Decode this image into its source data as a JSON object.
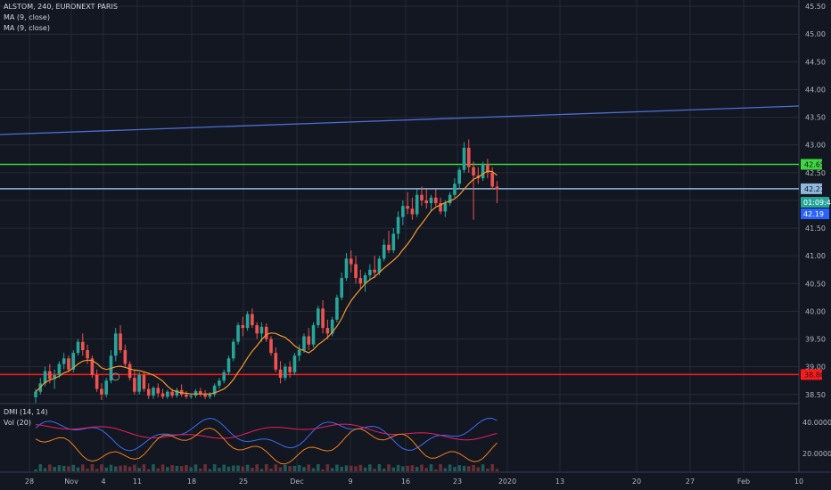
{
  "header": {
    "symbol_line": "ALSTOM, 240, EURONEXT PARIS",
    "indicator_1": "MA (9, close)",
    "indicator_2": "MA (9, close)"
  },
  "lower_pane": {
    "indicator_1": "DMI (14, 14)",
    "indicator_2": "Vol (20)"
  },
  "chart_data": {
    "type": "candlestick",
    "price_axis": {
      "range": [
        38.4,
        45.55
      ],
      "ticks": [
        "45.50",
        "45.00",
        "44.50",
        "44.00",
        "43.50",
        "43.00",
        "42.50",
        "42.00",
        "41.50",
        "41.00",
        "40.50",
        "40.00",
        "39.50",
        "39.00",
        "38.50"
      ]
    },
    "dmi_axis": {
      "ticks": [
        "40.0000",
        "20.0000"
      ]
    },
    "x_axis": {
      "labels": [
        "28",
        "Nov",
        "4",
        "11",
        "18",
        "25",
        "Dec",
        "9",
        "16",
        "23",
        "2020",
        "13",
        "20",
        "27",
        "Feb",
        "10"
      ]
    },
    "candles": [
      [
        38.45,
        38.6,
        38.35,
        38.55
      ],
      [
        38.55,
        38.8,
        38.5,
        38.7
      ],
      [
        38.7,
        39.0,
        38.65,
        38.92
      ],
      [
        38.92,
        39.05,
        38.7,
        38.78
      ],
      [
        38.78,
        38.95,
        38.6,
        38.85
      ],
      [
        38.85,
        39.1,
        38.8,
        39.05
      ],
      [
        39.05,
        39.25,
        38.95,
        39.15
      ],
      [
        39.15,
        39.2,
        38.9,
        38.95
      ],
      [
        38.95,
        39.3,
        38.9,
        39.25
      ],
      [
        39.25,
        39.5,
        39.2,
        39.45
      ],
      [
        39.45,
        39.6,
        39.2,
        39.3
      ],
      [
        39.3,
        39.4,
        39.05,
        39.15
      ],
      [
        39.15,
        39.2,
        38.8,
        38.85
      ],
      [
        38.85,
        38.95,
        38.55,
        38.6
      ],
      [
        38.6,
        38.7,
        38.4,
        38.5
      ],
      [
        38.5,
        38.8,
        38.45,
        38.75
      ],
      [
        38.75,
        39.3,
        38.7,
        39.2
      ],
      [
        39.2,
        39.7,
        39.1,
        39.6
      ],
      [
        39.6,
        39.75,
        39.25,
        39.3
      ],
      [
        39.3,
        39.4,
        39.0,
        39.05
      ],
      [
        39.05,
        39.1,
        38.75,
        38.8
      ],
      [
        38.8,
        38.95,
        38.5,
        38.55
      ],
      [
        38.55,
        38.9,
        38.5,
        38.85
      ],
      [
        38.85,
        38.9,
        38.55,
        38.6
      ],
      [
        38.6,
        38.7,
        38.42,
        38.48
      ],
      [
        38.48,
        38.65,
        38.42,
        38.62
      ],
      [
        38.62,
        38.7,
        38.45,
        38.52
      ],
      [
        38.52,
        38.6,
        38.42,
        38.46
      ],
      [
        38.46,
        38.58,
        38.42,
        38.55
      ],
      [
        38.55,
        38.6,
        38.44,
        38.48
      ],
      [
        38.48,
        38.62,
        38.44,
        38.58
      ],
      [
        38.58,
        38.68,
        38.46,
        38.5
      ],
      [
        38.5,
        38.56,
        38.42,
        38.46
      ],
      [
        38.46,
        38.52,
        38.42,
        38.48
      ],
      [
        38.48,
        38.6,
        38.44,
        38.56
      ],
      [
        38.56,
        38.62,
        38.46,
        38.5
      ],
      [
        38.5,
        38.58,
        38.42,
        38.46
      ],
      [
        38.46,
        38.54,
        38.42,
        38.5
      ],
      [
        38.5,
        38.7,
        38.46,
        38.66
      ],
      [
        38.66,
        38.8,
        38.6,
        38.75
      ],
      [
        38.75,
        38.95,
        38.7,
        38.9
      ],
      [
        38.9,
        39.2,
        38.85,
        39.15
      ],
      [
        39.15,
        39.5,
        39.1,
        39.45
      ],
      [
        39.45,
        39.8,
        39.4,
        39.75
      ],
      [
        39.75,
        39.9,
        39.55,
        39.7
      ],
      [
        39.7,
        40.0,
        39.65,
        39.95
      ],
      [
        39.95,
        40.05,
        39.7,
        39.75
      ],
      [
        39.75,
        39.8,
        39.5,
        39.6
      ],
      [
        39.6,
        39.8,
        39.45,
        39.72
      ],
      [
        39.72,
        39.78,
        39.45,
        39.5
      ],
      [
        39.5,
        39.55,
        39.2,
        39.25
      ],
      [
        39.25,
        39.35,
        38.9,
        38.95
      ],
      [
        38.95,
        39.1,
        38.7,
        38.8
      ],
      [
        38.8,
        39.05,
        38.75,
        39.0
      ],
      [
        39.0,
        39.1,
        38.8,
        38.9
      ],
      [
        38.9,
        39.25,
        38.85,
        39.2
      ],
      [
        39.2,
        39.4,
        39.1,
        39.3
      ],
      [
        39.3,
        39.6,
        39.25,
        39.55
      ],
      [
        39.55,
        39.7,
        39.3,
        39.4
      ],
      [
        39.4,
        39.8,
        39.35,
        39.75
      ],
      [
        39.75,
        40.1,
        39.7,
        40.05
      ],
      [
        40.05,
        40.2,
        39.6,
        39.7
      ],
      [
        39.7,
        39.85,
        39.5,
        39.6
      ],
      [
        39.6,
        39.9,
        39.55,
        39.85
      ],
      [
        39.85,
        40.3,
        39.8,
        40.25
      ],
      [
        40.25,
        40.7,
        40.2,
        40.6
      ],
      [
        40.6,
        41.05,
        40.55,
        40.95
      ],
      [
        40.95,
        41.1,
        40.7,
        40.85
      ],
      [
        40.85,
        41.0,
        40.5,
        40.6
      ],
      [
        40.6,
        40.75,
        40.4,
        40.5
      ],
      [
        40.5,
        40.7,
        40.35,
        40.65
      ],
      [
        40.65,
        40.85,
        40.55,
        40.75
      ],
      [
        40.75,
        41.0,
        40.6,
        40.7
      ],
      [
        40.7,
        41.0,
        40.65,
        40.95
      ],
      [
        40.95,
        41.3,
        40.9,
        41.2
      ],
      [
        41.2,
        41.45,
        41.05,
        41.1
      ],
      [
        41.1,
        41.5,
        41.05,
        41.4
      ],
      [
        41.4,
        41.8,
        41.3,
        41.7
      ],
      [
        41.7,
        42.0,
        41.55,
        41.9
      ],
      [
        41.9,
        42.15,
        41.75,
        41.85
      ],
      [
        41.85,
        42.05,
        41.65,
        41.75
      ],
      [
        41.75,
        42.2,
        41.7,
        42.1
      ],
      [
        42.1,
        42.25,
        41.9,
        42.0
      ],
      [
        42.0,
        42.2,
        41.85,
        41.95
      ],
      [
        41.95,
        42.1,
        41.8,
        42.05
      ],
      [
        42.05,
        42.2,
        41.9,
        41.95
      ],
      [
        41.95,
        42.05,
        41.75,
        41.8
      ],
      [
        41.8,
        42.0,
        41.7,
        41.95
      ],
      [
        41.95,
        42.15,
        41.9,
        42.1
      ],
      [
        42.1,
        42.4,
        42.05,
        42.3
      ],
      [
        42.3,
        42.6,
        42.2,
        42.55
      ],
      [
        42.55,
        43.05,
        42.5,
        42.95
      ],
      [
        42.95,
        43.1,
        42.5,
        42.6
      ],
      [
        42.6,
        42.7,
        41.65,
        42.45
      ],
      [
        42.45,
        42.6,
        42.3,
        42.4
      ],
      [
        42.4,
        42.7,
        42.35,
        42.65
      ],
      [
        42.65,
        42.75,
        42.4,
        42.5
      ],
      [
        42.5,
        42.6,
        42.2,
        42.25
      ],
      [
        42.25,
        42.35,
        41.95,
        42.2
      ]
    ],
    "ma": [
      38.55,
      38.63,
      38.72,
      38.76,
      38.79,
      38.83,
      38.89,
      38.92,
      38.98,
      39.05,
      39.1,
      39.12,
      39.11,
      39.06,
      38.98,
      38.95,
      38.97,
      39.0,
      39.01,
      38.99,
      38.96,
      38.94,
      38.93,
      38.91,
      38.88,
      38.85,
      38.8,
      38.74,
      38.65,
      38.58,
      38.55,
      38.53,
      38.52,
      38.51,
      38.51,
      38.51,
      38.51,
      38.51,
      38.53,
      38.56,
      38.6,
      38.67,
      38.77,
      38.9,
      39.02,
      39.16,
      39.28,
      39.38,
      39.49,
      39.58,
      39.61,
      39.6,
      39.56,
      39.53,
      39.46,
      39.38,
      39.32,
      39.29,
      39.25,
      39.31,
      39.4,
      39.46,
      39.53,
      39.62,
      39.73,
      39.87,
      40.05,
      40.19,
      40.3,
      40.4,
      40.5,
      40.57,
      40.62,
      40.7,
      40.78,
      40.85,
      40.92,
      41.0,
      41.11,
      41.21,
      41.33,
      41.47,
      41.58,
      41.69,
      41.81,
      41.88,
      41.92,
      41.96,
      41.99,
      42.03,
      42.1,
      42.2,
      42.3,
      42.38,
      42.42,
      42.48,
      42.53,
      42.52,
      42.45
    ],
    "horizontal_levels": [
      {
        "price": 42.65,
        "color": "#3fd63f",
        "label": "42.65"
      },
      {
        "price": 42.21,
        "color": "#8fb8dc",
        "label": "42.21"
      },
      {
        "price": 38.86,
        "color": "#ff1a1a",
        "label": "38.86"
      }
    ],
    "trendline": {
      "color": "#4c6fd6"
    },
    "price_labels": [
      {
        "text": "42.21",
        "bg": "#26a69a"
      },
      {
        "text": "01:09:45",
        "bg": "#26a69a"
      },
      {
        "text": "42.19",
        "bg": "#2962ff"
      }
    ],
    "colors": {
      "up": "#26a69a",
      "down": "#ef5350",
      "ma": "#f5992b",
      "bg": "#131722",
      "grid": "#242a36",
      "axis_text": "#b2b5be"
    }
  }
}
